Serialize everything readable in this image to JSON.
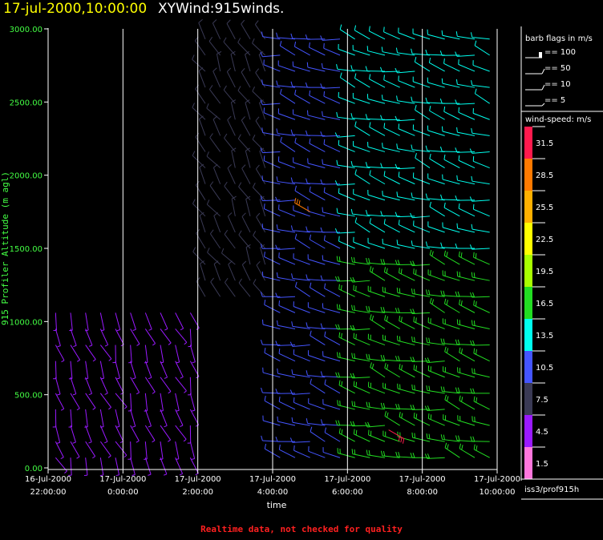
{
  "header": {
    "date": "17-jul-2000,10:00:00",
    "name": "XYWind:915winds."
  },
  "footer": {
    "note": "Realtime data, not checked for quality"
  },
  "legend": {
    "barb_title": "barb flags in m/s",
    "barb_items": [
      "== 100",
      "== 50",
      "== 10",
      "== 5"
    ],
    "speed_title": "wind-speed: m/s",
    "speed_bins": [
      {
        "label": "31.5",
        "color": "#ff1a4d"
      },
      {
        "label": "28.5",
        "color": "#ff7a00"
      },
      {
        "label": "25.5",
        "color": "#ffb000"
      },
      {
        "label": "22.5",
        "color": "#ffff00"
      },
      {
        "label": "19.5",
        "color": "#a8ff00"
      },
      {
        "label": "16.5",
        "color": "#22dd22"
      },
      {
        "label": "13.5",
        "color": "#00ffee"
      },
      {
        "label": "10.5",
        "color": "#4455ff"
      },
      {
        "label": "7.5",
        "color": "#3a3a55"
      },
      {
        "label": "4.5",
        "color": "#9a1aff"
      },
      {
        "label": "1.5",
        "color": "#ff77dd"
      }
    ],
    "station": "iss3/prof915h"
  },
  "chart_data": {
    "type": "wind-barb time-height",
    "ylabel": "915 Profiler Altitude (m agl)",
    "xlabel": "time",
    "ylim": [
      0,
      3000
    ],
    "yticks": [
      "0.00",
      "500.00",
      "1000.00",
      "1500.00",
      "2000.00",
      "2500.00",
      "3000.00"
    ],
    "xlim_hours": [
      22.0,
      34.0
    ],
    "xticks": [
      {
        "date": "16-Jul-2000",
        "time": "22:00:00"
      },
      {
        "date": "17-Jul-2000",
        "time": "0:00:00"
      },
      {
        "date": "17-Jul-2000",
        "time": "2:00:00"
      },
      {
        "date": "17-Jul-2000",
        "time": "4:00:00"
      },
      {
        "date": "17-Jul-2000",
        "time": "6:00:00"
      },
      {
        "date": "17-Jul-2000",
        "time": "8:00:00"
      },
      {
        "date": "17-Jul-2000",
        "time": "10:00:00"
      }
    ],
    "grid_x": true,
    "columns_hours": [
      22.2,
      22.6,
      23.0,
      23.4,
      23.8,
      24.2,
      24.6,
      25.0,
      25.4,
      25.8,
      26.2,
      26.6,
      27.0,
      27.4,
      27.8,
      28.2,
      28.6,
      29.0,
      29.4,
      29.8,
      30.2,
      30.6,
      31.0,
      31.4,
      31.8,
      32.2,
      32.6,
      33.0,
      33.4,
      33.8
    ],
    "levels_m": [
      70,
      180,
      290,
      400,
      510,
      620,
      730,
      840,
      950,
      1060,
      1170,
      1280,
      1390,
      1500,
      1610,
      1720,
      1830,
      1940,
      2050,
      2160,
      2270,
      2380,
      2490,
      2600,
      2710,
      2820,
      2930
    ],
    "direction_regimes_deg": [
      {
        "from_h": 22.0,
        "to_h": 26.0,
        "low_m": 0,
        "high_m": 1100,
        "dir": 160
      },
      {
        "from_h": 22.0,
        "to_h": 28.0,
        "low_m": 1100,
        "high_m": 3000,
        "dir": 330
      },
      {
        "from_h": 28.0,
        "to_h": 34.0,
        "low_m": 0,
        "high_m": 3000,
        "dir": 285
      }
    ],
    "speed_regimes_ms": [
      {
        "from_h": 22.0,
        "to_h": 26.0,
        "low_m": 0,
        "high_m": 1100,
        "speed": 4.5
      },
      {
        "from_h": 26.0,
        "to_h": 28.0,
        "low_m": 0,
        "high_m": 3000,
        "speed": 7.5
      },
      {
        "from_h": 28.0,
        "to_h": 30.0,
        "low_m": 0,
        "high_m": 3000,
        "speed": 10.5
      },
      {
        "from_h": 30.0,
        "to_h": 34.0,
        "low_m": 1500,
        "high_m": 3000,
        "speed": 13.5
      },
      {
        "from_h": 30.0,
        "to_h": 34.0,
        "low_m": 0,
        "high_m": 1500,
        "speed": 16.5
      }
    ],
    "notable_barbs": [
      {
        "hour": 29.0,
        "alt_m": 1750,
        "speed": 28.5,
        "dir": 300
      },
      {
        "hour": 31.1,
        "alt_m": 260,
        "speed": 31.5,
        "dir": 120
      }
    ]
  }
}
